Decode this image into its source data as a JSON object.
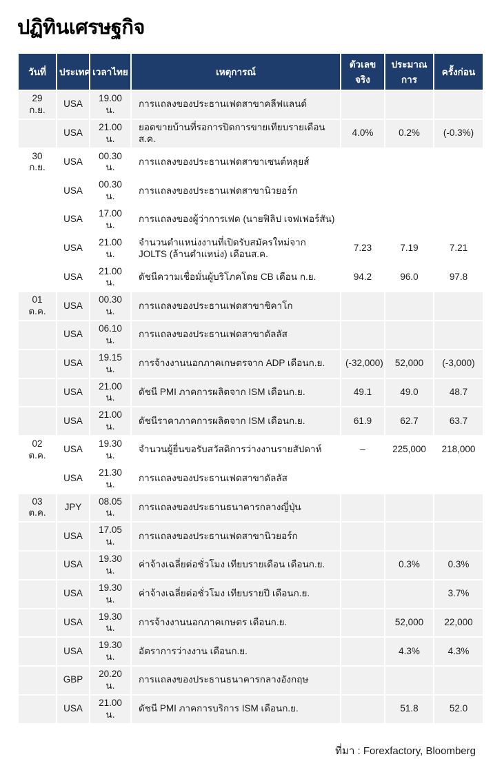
{
  "title": "ปฏิทินเศรษฐกิจ",
  "source": "ที่มา : Forexfactory, Bloomberg",
  "colors": {
    "header_bg": "#1e3c6c",
    "header_text": "#ffffff",
    "shaded_row_bg": "#f1f1f1",
    "row_bg": "#ffffff",
    "body_text": "#1a1a1a"
  },
  "table": {
    "columns": [
      {
        "key": "date",
        "label": "วันที่"
      },
      {
        "key": "country",
        "label": "ประเทศ"
      },
      {
        "key": "time",
        "label": "เวลาไทย"
      },
      {
        "key": "event",
        "label": "เหตุการณ์"
      },
      {
        "key": "actual",
        "label": "ตัวเลขจริง"
      },
      {
        "key": "forecast",
        "label": "ประมาณการ"
      },
      {
        "key": "previous",
        "label": "ครั้งก่อน"
      }
    ],
    "rows": [
      {
        "shade": true,
        "cells": {
          "date": "29 ก.ย.",
          "country": "USA",
          "time": "19.00 น.",
          "event": "การแถลงของประธานเฟดสาขาคลีฟแลนด์",
          "actual": "",
          "forecast": "",
          "previous": ""
        }
      },
      {
        "shade": true,
        "cells": {
          "date": "",
          "country": "USA",
          "time": "21.00 น.",
          "event": "ยอดขายบ้านที่รอการปิดการขายเทียบรายเดือนส.ค.",
          "actual": "4.0%",
          "forecast": "0.2%",
          "previous": "(-0.3%)"
        }
      },
      {
        "shade": false,
        "cells": {
          "date": "30 ก.ย.",
          "country": "USA",
          "time": "00.30 น.",
          "event": "การแถลงของประธานเฟดสาขาเซนต์หลุยส์",
          "actual": "",
          "forecast": "",
          "previous": ""
        }
      },
      {
        "shade": false,
        "cells": {
          "date": "",
          "country": "USA",
          "time": "00.30 น.",
          "event": "การแถลงของประธานเฟดสาขานิวยอร์ก",
          "actual": "",
          "forecast": "",
          "previous": ""
        }
      },
      {
        "shade": false,
        "cells": {
          "date": "",
          "country": "USA",
          "time": "17.00 น.",
          "event": "การแถลงของผู้ว่าการเฟด (นายฟิลิป เจฟเฟอร์สัน)",
          "actual": "",
          "forecast": "",
          "previous": ""
        }
      },
      {
        "shade": false,
        "cells": {
          "date": "",
          "country": "USA",
          "time": "21.00 น.",
          "event": "จำนวนตำแหน่งงานที่เปิดรับสมัครใหม่จาก JOLTS  (ล้านตำแหน่ง) เดือนส.ค.",
          "actual": "7.23",
          "forecast": "7.19",
          "previous": "7.21"
        }
      },
      {
        "shade": false,
        "cells": {
          "date": "",
          "country": "USA",
          "time": "21.00 น.",
          "event": "ดัชนีความเชื่อมั่นผู้บริโภคโดย CB เดือน ก.ย.",
          "actual": "94.2",
          "forecast": "96.0",
          "previous": "97.8"
        }
      },
      {
        "shade": true,
        "cells": {
          "date": "01 ต.ค.",
          "country": "USA",
          "time": "00.30 น.",
          "event": "การแถลงของประธานเฟดสาขาชิคาโก",
          "actual": "",
          "forecast": "",
          "previous": ""
        }
      },
      {
        "shade": true,
        "cells": {
          "date": "",
          "country": "USA",
          "time": "06.10 น.",
          "event": "การแถลงของประธานเฟดสาขาดัลลัส",
          "actual": "",
          "forecast": "",
          "previous": ""
        }
      },
      {
        "shade": true,
        "cells": {
          "date": "",
          "country": "USA",
          "time": "19.15 น.",
          "event": "การจ้างงานนอกภาคเกษตรจาก ADP เดือนก.ย.",
          "actual": "(-32,000)",
          "forecast": "52,000",
          "previous": "(-3,000)"
        }
      },
      {
        "shade": true,
        "cells": {
          "date": "",
          "country": "USA",
          "time": "21.00 น.",
          "event": "ดัชนี PMI ภาคการผลิตจาก ISM เดือนก.ย.",
          "actual": "49.1",
          "forecast": "49.0",
          "previous": "48.7"
        }
      },
      {
        "shade": true,
        "cells": {
          "date": "",
          "country": "USA",
          "time": "21.00 น.",
          "event": "ดัชนีราคาภาคการผลิตจาก ISM เดือนก.ย.",
          "actual": "61.9",
          "forecast": "62.7",
          "previous": "63.7"
        }
      },
      {
        "shade": false,
        "cells": {
          "date": "02 ต.ค.",
          "country": "USA",
          "time": "19.30 น.",
          "event": "จำนวนผู้ยื่นขอรับสวัสดิการว่างงานรายสัปดาห์",
          "actual": "–",
          "forecast": "225,000",
          "previous": "218,000"
        }
      },
      {
        "shade": false,
        "cells": {
          "date": "",
          "country": "USA",
          "time": "21.30 น.",
          "event": "การแถลงของประธานเฟดสาขาดัลลัส",
          "actual": "",
          "forecast": "",
          "previous": ""
        }
      },
      {
        "shade": true,
        "cells": {
          "date": "03 ต.ค.",
          "country": "JPY",
          "time": "08.05 น.",
          "event": "การแถลงของประธานธนาคารกลางญี่ปุ่น",
          "actual": "",
          "forecast": "",
          "previous": ""
        }
      },
      {
        "shade": true,
        "cells": {
          "date": "",
          "country": "USA",
          "time": "17.05 น.",
          "event": "การแถลงของประธานเฟดสาขานิวยอร์ก",
          "actual": "",
          "forecast": "",
          "previous": ""
        }
      },
      {
        "shade": true,
        "cells": {
          "date": "",
          "country": "USA",
          "time": "19.30 น.",
          "event": "ค่าจ้างเฉลี่ยต่อชั่วโมง เทียบรายเดือน เดือนก.ย.",
          "actual": "",
          "forecast": "0.3%",
          "previous": "0.3%"
        }
      },
      {
        "shade": true,
        "cells": {
          "date": "",
          "country": "USA",
          "time": "19.30 น.",
          "event": "ค่าจ้างเฉลี่ยต่อชั่วโมง เทียบรายปี เดือนก.ย.",
          "actual": "",
          "forecast": "",
          "previous": "3.7%"
        }
      },
      {
        "shade": true,
        "cells": {
          "date": "",
          "country": "USA",
          "time": "19.30 น.",
          "event": "การจ้างงานนอกภาคเกษตร เดือนก.ย.",
          "actual": "",
          "forecast": "52,000",
          "previous": "22,000"
        }
      },
      {
        "shade": true,
        "cells": {
          "date": "",
          "country": "USA",
          "time": "19.30 น.",
          "event": "อัตราการว่างงาน เดือนก.ย.",
          "actual": "",
          "forecast": "4.3%",
          "previous": "4.3%"
        }
      },
      {
        "shade": true,
        "cells": {
          "date": "",
          "country": "GBP",
          "time": "20.20 น.",
          "event": "การแถลงของประธานธนาคารกลางอังกฤษ",
          "actual": "",
          "forecast": "",
          "previous": ""
        }
      },
      {
        "shade": true,
        "cells": {
          "date": "",
          "country": "USA",
          "time": "21.00 น.",
          "event": "ดัชนี PMI ภาคการบริการ ISM เดือนก.ย.",
          "actual": "",
          "forecast": "51.8",
          "previous": "52.0"
        }
      }
    ]
  }
}
